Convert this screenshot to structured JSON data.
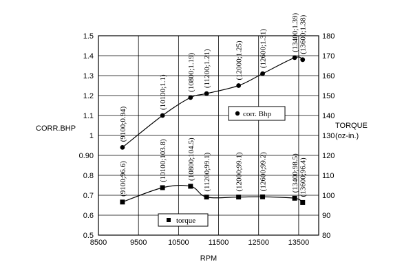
{
  "chart_data": {
    "type": "line",
    "xlabel": "RPM",
    "ylabel_left": "CORR.BHP",
    "ylabel_right_line1": "TORQUE",
    "ylabel_right_line2": "(oz-in.)",
    "xlim": [
      8500,
      14000
    ],
    "ylim_left": [
      0.5,
      1.5
    ],
    "ylim_right": [
      80,
      180
    ],
    "grid": true,
    "x_ticks": [
      8500,
      9500,
      10500,
      11500,
      12500,
      13500
    ],
    "y_left_ticks": [
      0.5,
      0.6,
      0.7,
      0.8,
      0.9,
      1,
      1.1,
      1.2,
      1.3,
      1.4,
      1.5
    ],
    "y_left_tick_labels": [
      "0.5",
      "0.6",
      "0.7",
      "0.8",
      "0.90",
      "1",
      "1.1",
      "1.2",
      "1.3",
      "1.4",
      "1.5"
    ],
    "y_right_ticks": [
      80,
      90,
      100,
      110,
      120,
      130,
      140,
      150,
      160,
      170,
      180
    ],
    "series": [
      {
        "name": "corr. Bhp",
        "axis": "left",
        "marker": "circle",
        "x": [
          9100,
          10100,
          10800,
          11200,
          12000,
          12600,
          13400,
          13600
        ],
        "y": [
          0.94,
          1.1,
          1.19,
          1.21,
          1.25,
          1.31,
          1.39,
          1.38
        ],
        "labels": [
          "(9100;0.94)",
          "(10100;1.1)",
          "(10800;1.19)",
          "(11200;1.21)",
          "(12000;1.25)",
          "(12600;1.31)",
          "(13400;1.39)",
          "(13600;1.38)"
        ]
      },
      {
        "name": "torque",
        "axis": "right",
        "marker": "square",
        "x": [
          9100,
          10100,
          10800,
          11200,
          12000,
          12600,
          13400,
          13600
        ],
        "y": [
          96.6,
          103.8,
          104.5,
          99.1,
          99.1,
          99.2,
          98.5,
          96.4
        ],
        "labels": [
          "(9100;96.6)",
          "(10100;103.8)",
          "(10800;104.5)",
          "(11200;99.1)",
          "(12000;99.1)",
          "(12600;99.2)",
          "(13400;98.5)",
          "(13600;96.4)"
        ]
      }
    ],
    "legend": [
      {
        "series": "corr. Bhp",
        "position": "center-right"
      },
      {
        "series": "torque",
        "position": "bottom-center"
      }
    ]
  }
}
